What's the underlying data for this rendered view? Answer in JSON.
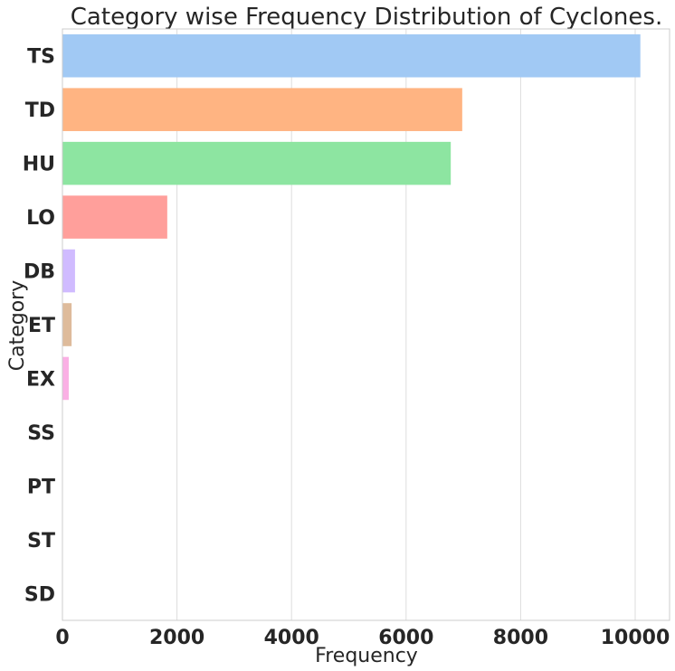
{
  "chart_data": {
    "type": "bar",
    "orientation": "horizontal",
    "title": "Category wise Frequency Distribution of Cyclones.",
    "xlabel": "Frequency",
    "ylabel": "Category",
    "xlim": [
      0,
      10600
    ],
    "xticks": [
      0,
      2000,
      4000,
      6000,
      8000,
      10000
    ],
    "grid": "vertical",
    "categories": [
      "TS",
      "TD",
      "HU",
      "LO",
      "DB",
      "ET",
      "EX",
      "SS",
      "PT",
      "ST",
      "SD"
    ],
    "values": [
      10090,
      6980,
      6780,
      1830,
      220,
      160,
      110,
      5,
      4,
      3,
      2
    ],
    "colors": [
      "#a1c9f4",
      "#ffb482",
      "#8de5a1",
      "#ff9f9b",
      "#d0bbff",
      "#debb9b",
      "#fab0e4",
      "#cfcfcf",
      "#fffea3",
      "#b9f2f0",
      "#a1c9f4"
    ]
  }
}
